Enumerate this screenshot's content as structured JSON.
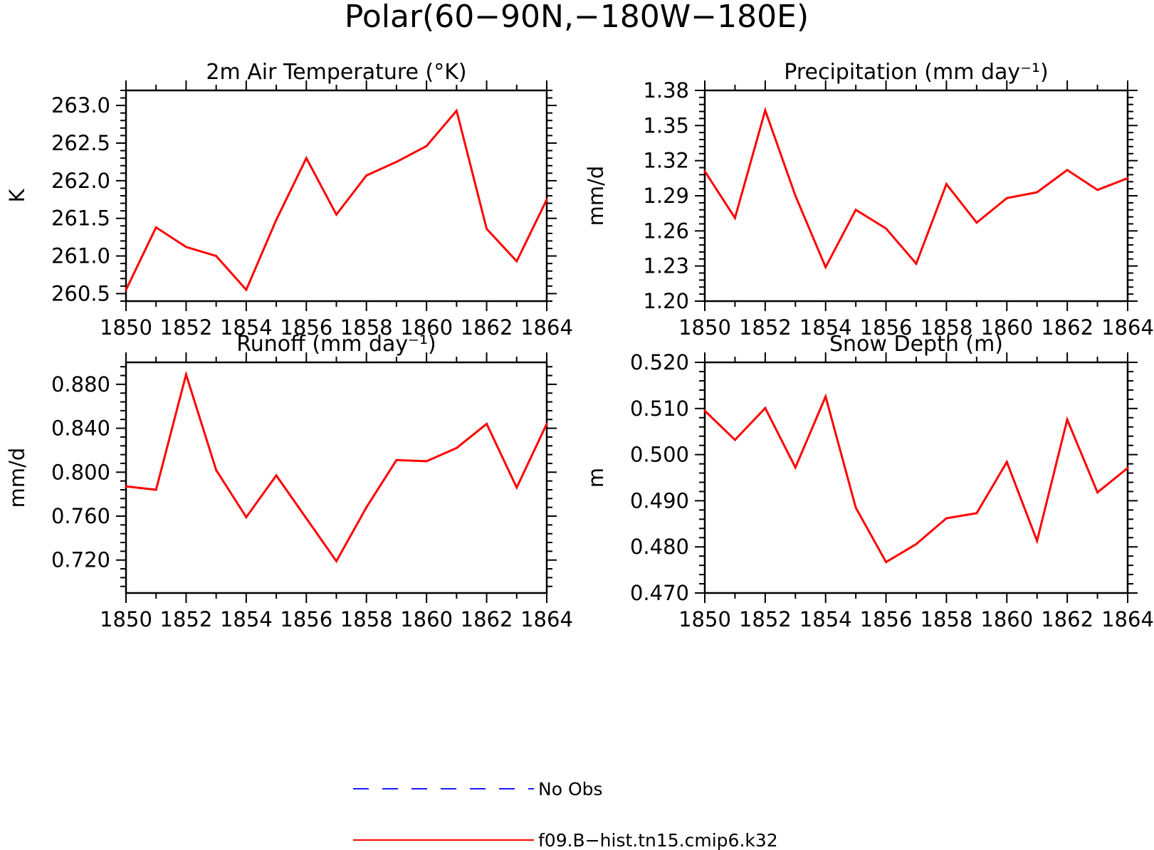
{
  "figure": {
    "title": "Polar(60−90N,−180W−180E)"
  },
  "legend": {
    "entries": [
      {
        "label": "No Obs",
        "color": "#1a1aff",
        "style": "dashed"
      },
      {
        "label": "f09.B−hist.tn15.cmip6.k32",
        "color": "#ff0000",
        "style": "solid"
      }
    ]
  },
  "chart_data": [
    {
      "type": "line",
      "title": "2m Air Temperature (°K)",
      "ylabel": "K",
      "xlabel": "",
      "xlim": [
        1850,
        1864
      ],
      "ylim": [
        260.4,
        263.2
      ],
      "x_ticks": [
        1850,
        1852,
        1854,
        1856,
        1858,
        1860,
        1862,
        1864
      ],
      "x_tick_labels": [
        "1850",
        "1852",
        "1854",
        "1856",
        "1858",
        "1860",
        "1862",
        "1864"
      ],
      "y_ticks": [
        260.5,
        261.0,
        261.5,
        262.0,
        262.5,
        263.0
      ],
      "y_tick_labels": [
        "260.5",
        "261.0",
        "261.5",
        "262.0",
        "262.5",
        "263.0"
      ],
      "x": [
        1850,
        1851,
        1852,
        1853,
        1854,
        1855,
        1856,
        1857,
        1858,
        1859,
        1860,
        1861,
        1862,
        1863,
        1864
      ],
      "series": [
        {
          "name": "f09.B−hist.tn15.cmip6.k32",
          "color": "#ff0000",
          "values": [
            260.55,
            261.38,
            261.12,
            261.0,
            260.55,
            261.48,
            262.3,
            261.55,
            262.07,
            262.25,
            262.46,
            262.93,
            261.36,
            260.93,
            261.75
          ]
        }
      ]
    },
    {
      "type": "line",
      "title": "Precipitation (mm day⁻¹)",
      "ylabel": "mm/d",
      "xlabel": "",
      "xlim": [
        1850,
        1864
      ],
      "ylim": [
        1.2,
        1.38
      ],
      "x_ticks": [
        1850,
        1852,
        1854,
        1856,
        1858,
        1860,
        1862,
        1864
      ],
      "x_tick_labels": [
        "1850",
        "1852",
        "1854",
        "1856",
        "1858",
        "1860",
        "1862",
        "1864"
      ],
      "y_ticks": [
        1.2,
        1.23,
        1.26,
        1.29,
        1.32,
        1.35,
        1.38
      ],
      "y_tick_labels": [
        "1.20",
        "1.23",
        "1.26",
        "1.29",
        "1.32",
        "1.35",
        "1.38"
      ],
      "x": [
        1850,
        1851,
        1852,
        1853,
        1854,
        1855,
        1856,
        1857,
        1858,
        1859,
        1860,
        1861,
        1862,
        1863,
        1864
      ],
      "series": [
        {
          "name": "f09.B−hist.tn15.cmip6.k32",
          "color": "#ff0000",
          "values": [
            1.311,
            1.271,
            1.363,
            1.29,
            1.229,
            1.278,
            1.262,
            1.232,
            1.3,
            1.267,
            1.288,
            1.293,
            1.312,
            1.295,
            1.305
          ]
        }
      ]
    },
    {
      "type": "line",
      "title": "Runoff (mm day⁻¹)",
      "ylabel": "mm/d",
      "xlabel": "",
      "xlim": [
        1850,
        1864
      ],
      "ylim": [
        0.69,
        0.9
      ],
      "x_ticks": [
        1850,
        1852,
        1854,
        1856,
        1858,
        1860,
        1862,
        1864
      ],
      "x_tick_labels": [
        "1850",
        "1852",
        "1854",
        "1856",
        "1858",
        "1860",
        "1862",
        "1864"
      ],
      "y_ticks": [
        0.72,
        0.76,
        0.8,
        0.84,
        0.88
      ],
      "y_tick_labels": [
        "0.720",
        "0.760",
        "0.800",
        "0.840",
        "0.880"
      ],
      "x": [
        1850,
        1851,
        1852,
        1853,
        1854,
        1855,
        1856,
        1857,
        1858,
        1859,
        1860,
        1861,
        1862,
        1863,
        1864
      ],
      "series": [
        {
          "name": "f09.B−hist.tn15.cmip6.k32",
          "color": "#ff0000",
          "values": [
            0.787,
            0.784,
            0.889,
            0.802,
            0.759,
            0.797,
            0.758,
            0.719,
            0.768,
            0.811,
            0.81,
            0.822,
            0.844,
            0.786,
            0.844
          ]
        }
      ]
    },
    {
      "type": "line",
      "title": "Snow Depth (m)",
      "ylabel": "m",
      "xlabel": "",
      "xlim": [
        1850,
        1864
      ],
      "ylim": [
        0.47,
        0.52
      ],
      "x_ticks": [
        1850,
        1852,
        1854,
        1856,
        1858,
        1860,
        1862,
        1864
      ],
      "x_tick_labels": [
        "1850",
        "1852",
        "1854",
        "1856",
        "1858",
        "1860",
        "1862",
        "1864"
      ],
      "y_ticks": [
        0.47,
        0.48,
        0.49,
        0.5,
        0.51,
        0.52
      ],
      "y_tick_labels": [
        "0.470",
        "0.480",
        "0.490",
        "0.500",
        "0.510",
        "0.520"
      ],
      "x": [
        1850,
        1851,
        1852,
        1853,
        1854,
        1855,
        1856,
        1857,
        1858,
        1859,
        1860,
        1861,
        1862,
        1863,
        1864
      ],
      "series": [
        {
          "name": "f09.B−hist.tn15.cmip6.k32",
          "color": "#ff0000",
          "values": [
            0.5095,
            0.5032,
            0.5101,
            0.4972,
            0.5126,
            0.4885,
            0.4767,
            0.4806,
            0.4862,
            0.4873,
            0.4984,
            0.4813,
            0.5076,
            0.4918,
            0.4971
          ]
        }
      ]
    }
  ]
}
